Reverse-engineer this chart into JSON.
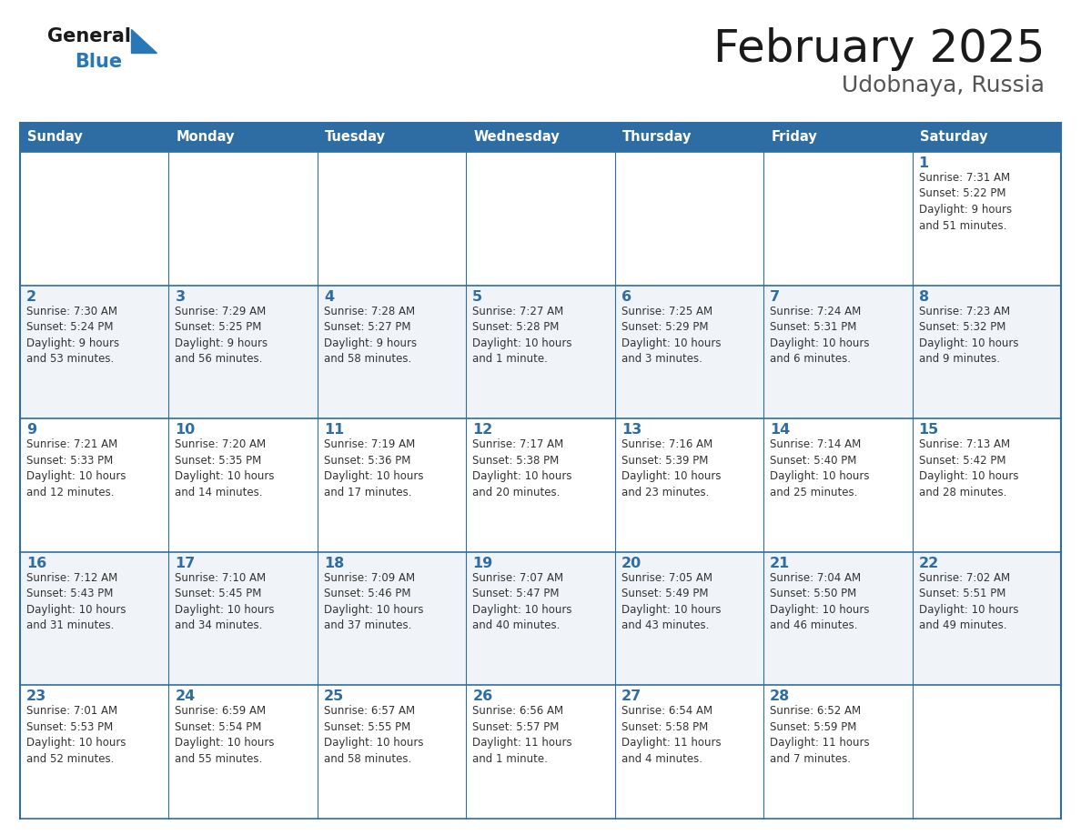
{
  "title": "February 2025",
  "subtitle": "Udobnaya, Russia",
  "header_bg_color": "#2E6DA4",
  "header_text_color": "#FFFFFF",
  "cell_bg_even": "#FFFFFF",
  "cell_bg_odd": "#F0F4F8",
  "border_color": "#2E6DA4",
  "title_color": "#1a1a1a",
  "subtitle_color": "#555555",
  "day_number_color": "#2E6DA4",
  "cell_text_color": "#333333",
  "logo_text_color": "#1a1a1a",
  "logo_blue_color": "#2878B8",
  "days_of_week": [
    "Sunday",
    "Monday",
    "Tuesday",
    "Wednesday",
    "Thursday",
    "Friday",
    "Saturday"
  ],
  "weeks": [
    [
      {
        "day": "",
        "info": ""
      },
      {
        "day": "",
        "info": ""
      },
      {
        "day": "",
        "info": ""
      },
      {
        "day": "",
        "info": ""
      },
      {
        "day": "",
        "info": ""
      },
      {
        "day": "",
        "info": ""
      },
      {
        "day": "1",
        "info": "Sunrise: 7:31 AM\nSunset: 5:22 PM\nDaylight: 9 hours\nand 51 minutes."
      }
    ],
    [
      {
        "day": "2",
        "info": "Sunrise: 7:30 AM\nSunset: 5:24 PM\nDaylight: 9 hours\nand 53 minutes."
      },
      {
        "day": "3",
        "info": "Sunrise: 7:29 AM\nSunset: 5:25 PM\nDaylight: 9 hours\nand 56 minutes."
      },
      {
        "day": "4",
        "info": "Sunrise: 7:28 AM\nSunset: 5:27 PM\nDaylight: 9 hours\nand 58 minutes."
      },
      {
        "day": "5",
        "info": "Sunrise: 7:27 AM\nSunset: 5:28 PM\nDaylight: 10 hours\nand 1 minute."
      },
      {
        "day": "6",
        "info": "Sunrise: 7:25 AM\nSunset: 5:29 PM\nDaylight: 10 hours\nand 3 minutes."
      },
      {
        "day": "7",
        "info": "Sunrise: 7:24 AM\nSunset: 5:31 PM\nDaylight: 10 hours\nand 6 minutes."
      },
      {
        "day": "8",
        "info": "Sunrise: 7:23 AM\nSunset: 5:32 PM\nDaylight: 10 hours\nand 9 minutes."
      }
    ],
    [
      {
        "day": "9",
        "info": "Sunrise: 7:21 AM\nSunset: 5:33 PM\nDaylight: 10 hours\nand 12 minutes."
      },
      {
        "day": "10",
        "info": "Sunrise: 7:20 AM\nSunset: 5:35 PM\nDaylight: 10 hours\nand 14 minutes."
      },
      {
        "day": "11",
        "info": "Sunrise: 7:19 AM\nSunset: 5:36 PM\nDaylight: 10 hours\nand 17 minutes."
      },
      {
        "day": "12",
        "info": "Sunrise: 7:17 AM\nSunset: 5:38 PM\nDaylight: 10 hours\nand 20 minutes."
      },
      {
        "day": "13",
        "info": "Sunrise: 7:16 AM\nSunset: 5:39 PM\nDaylight: 10 hours\nand 23 minutes."
      },
      {
        "day": "14",
        "info": "Sunrise: 7:14 AM\nSunset: 5:40 PM\nDaylight: 10 hours\nand 25 minutes."
      },
      {
        "day": "15",
        "info": "Sunrise: 7:13 AM\nSunset: 5:42 PM\nDaylight: 10 hours\nand 28 minutes."
      }
    ],
    [
      {
        "day": "16",
        "info": "Sunrise: 7:12 AM\nSunset: 5:43 PM\nDaylight: 10 hours\nand 31 minutes."
      },
      {
        "day": "17",
        "info": "Sunrise: 7:10 AM\nSunset: 5:45 PM\nDaylight: 10 hours\nand 34 minutes."
      },
      {
        "day": "18",
        "info": "Sunrise: 7:09 AM\nSunset: 5:46 PM\nDaylight: 10 hours\nand 37 minutes."
      },
      {
        "day": "19",
        "info": "Sunrise: 7:07 AM\nSunset: 5:47 PM\nDaylight: 10 hours\nand 40 minutes."
      },
      {
        "day": "20",
        "info": "Sunrise: 7:05 AM\nSunset: 5:49 PM\nDaylight: 10 hours\nand 43 minutes."
      },
      {
        "day": "21",
        "info": "Sunrise: 7:04 AM\nSunset: 5:50 PM\nDaylight: 10 hours\nand 46 minutes."
      },
      {
        "day": "22",
        "info": "Sunrise: 7:02 AM\nSunset: 5:51 PM\nDaylight: 10 hours\nand 49 minutes."
      }
    ],
    [
      {
        "day": "23",
        "info": "Sunrise: 7:01 AM\nSunset: 5:53 PM\nDaylight: 10 hours\nand 52 minutes."
      },
      {
        "day": "24",
        "info": "Sunrise: 6:59 AM\nSunset: 5:54 PM\nDaylight: 10 hours\nand 55 minutes."
      },
      {
        "day": "25",
        "info": "Sunrise: 6:57 AM\nSunset: 5:55 PM\nDaylight: 10 hours\nand 58 minutes."
      },
      {
        "day": "26",
        "info": "Sunrise: 6:56 AM\nSunset: 5:57 PM\nDaylight: 11 hours\nand 1 minute."
      },
      {
        "day": "27",
        "info": "Sunrise: 6:54 AM\nSunset: 5:58 PM\nDaylight: 11 hours\nand 4 minutes."
      },
      {
        "day": "28",
        "info": "Sunrise: 6:52 AM\nSunset: 5:59 PM\nDaylight: 11 hours\nand 7 minutes."
      },
      {
        "day": "",
        "info": ""
      }
    ]
  ]
}
